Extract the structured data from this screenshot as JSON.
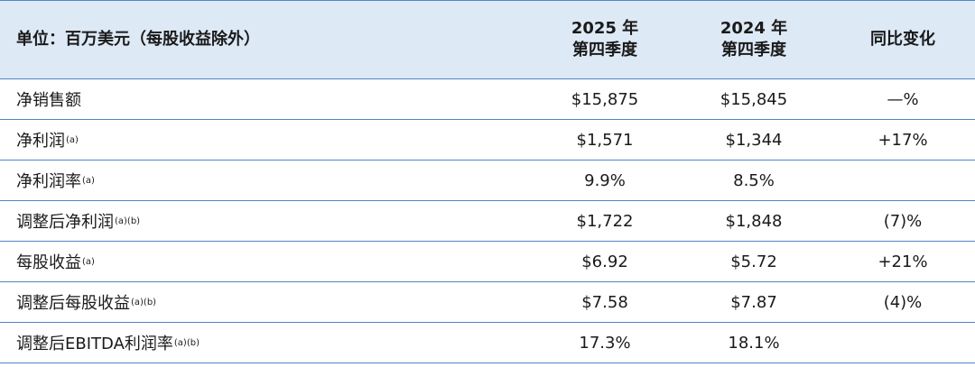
{
  "table": {
    "header": {
      "unit": "单位：百万美元（每股收益除外）",
      "col1": [
        "2025 年",
        "第四季度"
      ],
      "col2": [
        "2024 年",
        "第四季度"
      ],
      "col3": "同比变化"
    },
    "rows": [
      {
        "label": "净销售额",
        "q4_2025": "$15,875",
        "q4_2024": "$15,845",
        "change": "—%"
      },
      {
        "label": "净利润",
        "note": "(a)",
        "q4_2025": "$1,571",
        "q4_2024": "$1,344",
        "change": "+17%"
      },
      {
        "label": "净利润率",
        "note": "(a)",
        "q4_2025": "9.9%",
        "q4_2024": "8.5%"
      },
      {
        "label": "调整后净利润",
        "note": "(a)(b)",
        "q4_2025": "$1,722",
        "q4_2024": "$1,848",
        "change": "(7)%"
      },
      {
        "label": "每股收益",
        "note": "(a)",
        "q4_2025": "$6.92",
        "q4_2024": "$5.72",
        "change": "+21%"
      },
      {
        "label": "调整后每股收益",
        "note": "(a)(b)",
        "q4_2025": "$7.58",
        "q4_2024": "$7.87",
        "change": "(4)%"
      },
      {
        "label": "调整后EBITDA利润率",
        "note": "(a)(b)",
        "q4_2025": "17.3%",
        "q4_2024": "18.1%"
      }
    ]
  }
}
